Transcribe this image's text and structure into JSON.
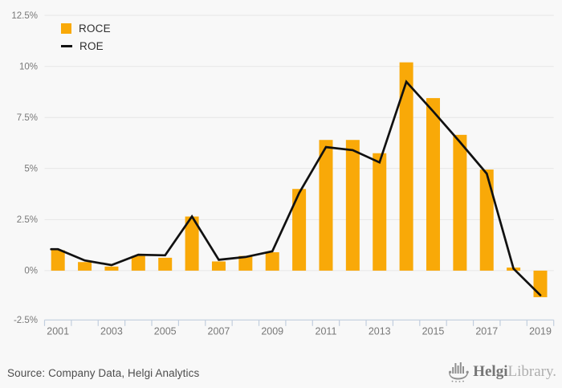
{
  "legend": {
    "roce_label": "ROCE",
    "roe_label": "ROE"
  },
  "footer": {
    "source": "Source: Company Data, Helgi Analytics",
    "logo_text_bold": "Helgi",
    "logo_text_light": "Library."
  },
  "colors": {
    "bar": "#F9A908",
    "line": "#111111",
    "grid": "#e6e6e6",
    "axis": "#c2cede",
    "tick_label": "#787878",
    "legend_text": "#2e2e2e",
    "background": "#f8f8f8",
    "logo_gray": "#8f8f8f"
  },
  "chart_data": {
    "type": "bar",
    "subtype": "bar-with-line-overlay",
    "title": "",
    "xlabel": "",
    "ylabel": "",
    "categories": [
      2001,
      2002,
      2003,
      2004,
      2005,
      2006,
      2007,
      2008,
      2009,
      2010,
      2011,
      2012,
      2013,
      2014,
      2015,
      2016,
      2017,
      2018,
      2019
    ],
    "series": [
      {
        "name": "ROCE",
        "type": "bar",
        "color": "#F9A908",
        "values": [
          1.0,
          0.42,
          0.2,
          0.72,
          0.63,
          2.65,
          0.45,
          0.72,
          0.9,
          4.0,
          6.4,
          6.4,
          5.75,
          10.2,
          8.45,
          6.65,
          4.95,
          0.15,
          -1.3
        ]
      },
      {
        "name": "ROE",
        "type": "line",
        "color": "#111111",
        "values": [
          1.05,
          0.5,
          0.27,
          0.78,
          0.75,
          2.65,
          0.53,
          0.67,
          0.95,
          3.8,
          6.05,
          5.9,
          5.3,
          9.25,
          7.8,
          6.3,
          4.75,
          0.1,
          -1.2
        ]
      }
    ],
    "unit": "%",
    "ylim": [
      -2.5,
      12.5
    ],
    "y_ticks": [
      -2.5,
      0,
      2.5,
      5,
      7.5,
      10,
      12.5
    ],
    "y_tick_labels": [
      "-2.5%",
      "0%",
      "2.5%",
      "5%",
      "7.5%",
      "10%",
      "12.5%"
    ],
    "x_labeled_years": [
      2001,
      2003,
      2005,
      2007,
      2009,
      2011,
      2013,
      2015,
      2017,
      2019
    ],
    "grid": true,
    "legend_position": "top-left"
  }
}
